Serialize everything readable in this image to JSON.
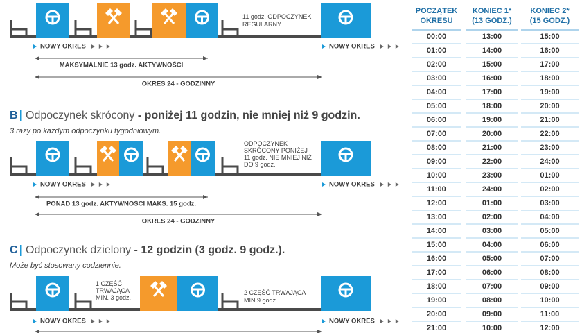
{
  "section_a": {
    "rest_note": [
      "11 godz. ODPOCZYNEK",
      "REGULARNY"
    ],
    "new_period": [
      "NOWY OKRES",
      "NOWY OKRES"
    ],
    "activity_span": "MAKSYMALNIE 13 godz. AKTYWNOŚCI",
    "period_span": "OKRES 24 - GODZINNY"
  },
  "section_b": {
    "letter": "B",
    "name": "Odpoczynek skrócony",
    "detail": " - poniżej 11 godzin, nie mniej niż 9 godzin.",
    "subtitle": "3 razy po każdym odpoczynku tygodniowym.",
    "rest_note": [
      "ODPOCZYNEK",
      "SKRÓCONY PONIŻEJ",
      "11 godz. NIE MNIEJ NIŻ",
      "DO 9 godz."
    ],
    "new_period": [
      "NOWY OKRES",
      "NOWY OKRES"
    ],
    "activity_span": "PONAD 13 godz. AKTYWNOŚCI MAKS. 15 godz.",
    "period_span": "OKRES 24 - GODZINNY"
  },
  "section_c": {
    "letter": "C",
    "name": "Odpoczynek dzielony",
    "detail": " - 12 godzin (3 godz. 9 godz.).",
    "subtitle": "Może być stosowany codziennie.",
    "part_1": [
      "1 CZĘŚĆ",
      "TRWAJĄCA",
      "MIN. 3 godz."
    ],
    "part_2": [
      "2 CZĘŚĆ TRWAJĄCA",
      "MIN 9 godz."
    ],
    "new_period": [
      "NOWY OKRES",
      "NOWY OKRES"
    ]
  },
  "table": {
    "header": [
      [
        "POCZĄTEK",
        "OKRESU"
      ],
      [
        "KONIEC 1*",
        "(13 GODZ.)"
      ],
      [
        "KONIEC 2*",
        "(15 GODZ.)"
      ]
    ],
    "rows": [
      [
        "00:00",
        "13:00",
        "15:00"
      ],
      [
        "01:00",
        "14:00",
        "16:00"
      ],
      [
        "02:00",
        "15:00",
        "17:00"
      ],
      [
        "03:00",
        "16:00",
        "18:00"
      ],
      [
        "04:00",
        "17:00",
        "19:00"
      ],
      [
        "05:00",
        "18:00",
        "20:00"
      ],
      [
        "06:00",
        "19:00",
        "21:00"
      ],
      [
        "07:00",
        "20:00",
        "22:00"
      ],
      [
        "08:00",
        "21:00",
        "23:00"
      ],
      [
        "09:00",
        "22:00",
        "24:00"
      ],
      [
        "10:00",
        "23:00",
        "01:00"
      ],
      [
        "11:00",
        "24:00",
        "02:00"
      ],
      [
        "12:00",
        "01:00",
        "03:00"
      ],
      [
        "13:00",
        "02:00",
        "04:00"
      ],
      [
        "14:00",
        "03:00",
        "05:00"
      ],
      [
        "15:00",
        "04:00",
        "06:00"
      ],
      [
        "16:00",
        "05:00",
        "07:00"
      ],
      [
        "17:00",
        "06:00",
        "08:00"
      ],
      [
        "18:00",
        "07:00",
        "09:00"
      ],
      [
        "19:00",
        "08:00",
        "10:00"
      ],
      [
        "20:00",
        "09:00",
        "11:00"
      ],
      [
        "21:00",
        "10:00",
        "12:00"
      ]
    ]
  }
}
